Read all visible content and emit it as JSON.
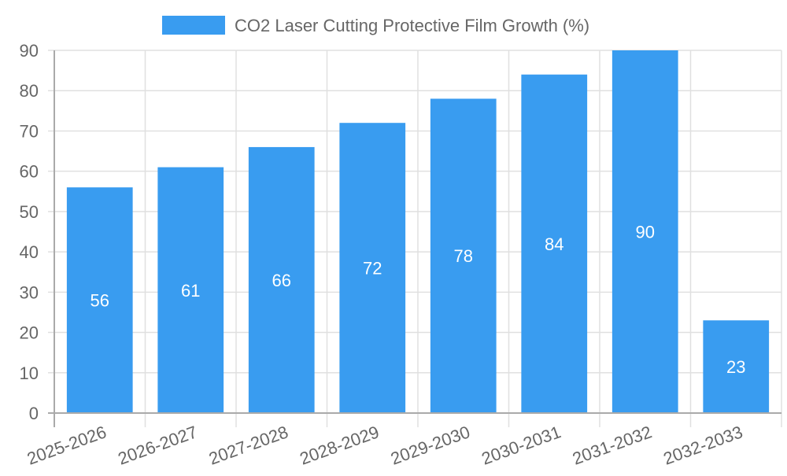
{
  "chart_data": {
    "type": "bar",
    "title": "",
    "xlabel": "",
    "ylabel": "",
    "categories": [
      "2025-2026",
      "2026-2027",
      "2027-2028",
      "2028-2029",
      "2029-2030",
      "2030-2031",
      "2031-2032",
      "2032-2033"
    ],
    "series": [
      {
        "name": "CO2 Laser Cutting Protective Film Growth (%)",
        "values": [
          56,
          61,
          66,
          72,
          78,
          84,
          90,
          23
        ],
        "color": "#399cf0"
      }
    ],
    "ylim": [
      0,
      90
    ],
    "yticks": [
      0,
      10,
      20,
      30,
      40,
      50,
      60,
      70,
      80,
      90
    ],
    "grid": true,
    "legend": "top-center",
    "data_labels": true
  }
}
